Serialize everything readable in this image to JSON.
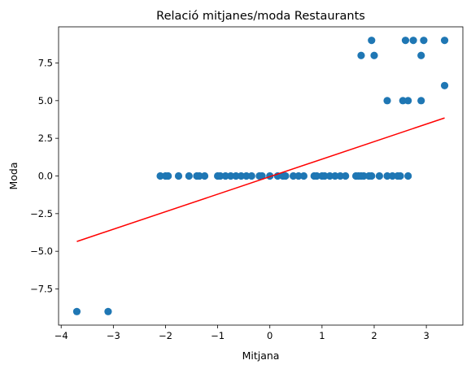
{
  "chart_data": {
    "type": "scatter",
    "title": "Relació mitjanes/moda Restaurants",
    "xlabel": "Mitjana",
    "ylabel": "Moda",
    "xlim": [
      -4.05,
      3.7
    ],
    "ylim": [
      -9.9,
      9.9
    ],
    "x_ticks": [
      -4,
      -3,
      -2,
      -1,
      0,
      1,
      2,
      3
    ],
    "x_tick_labels": [
      "−4",
      "−3",
      "−2",
      "−1",
      "0",
      "1",
      "2",
      "3"
    ],
    "y_ticks": [
      -7.5,
      -5.0,
      -2.5,
      0.0,
      2.5,
      5.0,
      7.5
    ],
    "y_tick_labels": [
      "−7.5",
      "−5.0",
      "−2.5",
      "0.0",
      "2.5",
      "5.0",
      "7.5"
    ],
    "grid": false,
    "legend": "none",
    "colors": {
      "points": "#1f77b4",
      "fit_line": "#ff0000"
    },
    "points": [
      {
        "x": -3.7,
        "y": -9
      },
      {
        "x": -3.1,
        "y": -9
      },
      {
        "x": -2.1,
        "y": 0
      },
      {
        "x": -2.0,
        "y": 0
      },
      {
        "x": -1.95,
        "y": 0
      },
      {
        "x": -1.75,
        "y": 0
      },
      {
        "x": -1.55,
        "y": 0
      },
      {
        "x": -1.4,
        "y": 0
      },
      {
        "x": -1.35,
        "y": 0
      },
      {
        "x": -1.25,
        "y": 0
      },
      {
        "x": -1.0,
        "y": 0
      },
      {
        "x": -0.95,
        "y": 0
      },
      {
        "x": -0.85,
        "y": 0
      },
      {
        "x": -0.75,
        "y": 0
      },
      {
        "x": -0.65,
        "y": 0
      },
      {
        "x": -0.55,
        "y": 0
      },
      {
        "x": -0.45,
        "y": 0
      },
      {
        "x": -0.35,
        "y": 0
      },
      {
        "x": -0.2,
        "y": 0
      },
      {
        "x": -0.15,
        "y": 0
      },
      {
        "x": 0.0,
        "y": 0
      },
      {
        "x": 0.15,
        "y": 0
      },
      {
        "x": 0.25,
        "y": 0
      },
      {
        "x": 0.3,
        "y": 0
      },
      {
        "x": 0.45,
        "y": 0
      },
      {
        "x": 0.55,
        "y": 0
      },
      {
        "x": 0.65,
        "y": 0
      },
      {
        "x": 0.85,
        "y": 0
      },
      {
        "x": 0.9,
        "y": 0
      },
      {
        "x": 1.0,
        "y": 0
      },
      {
        "x": 1.05,
        "y": 0
      },
      {
        "x": 1.15,
        "y": 0
      },
      {
        "x": 1.25,
        "y": 0
      },
      {
        "x": 1.35,
        "y": 0
      },
      {
        "x": 1.45,
        "y": 0
      },
      {
        "x": 1.65,
        "y": 0
      },
      {
        "x": 1.7,
        "y": 0
      },
      {
        "x": 1.75,
        "y": 0
      },
      {
        "x": 1.8,
        "y": 0
      },
      {
        "x": 1.9,
        "y": 0
      },
      {
        "x": 1.95,
        "y": 0
      },
      {
        "x": 2.1,
        "y": 0
      },
      {
        "x": 2.25,
        "y": 0
      },
      {
        "x": 2.35,
        "y": 0
      },
      {
        "x": 2.45,
        "y": 0
      },
      {
        "x": 2.5,
        "y": 0
      },
      {
        "x": 2.65,
        "y": 0
      },
      {
        "x": 1.75,
        "y": 8
      },
      {
        "x": 1.95,
        "y": 9
      },
      {
        "x": 2.0,
        "y": 8
      },
      {
        "x": 2.6,
        "y": 9
      },
      {
        "x": 2.75,
        "y": 9
      },
      {
        "x": 2.9,
        "y": 8
      },
      {
        "x": 2.95,
        "y": 9
      },
      {
        "x": 3.35,
        "y": 9
      },
      {
        "x": 3.35,
        "y": 6
      },
      {
        "x": 2.25,
        "y": 5
      },
      {
        "x": 2.55,
        "y": 5
      },
      {
        "x": 2.65,
        "y": 5
      },
      {
        "x": 2.9,
        "y": 5
      }
    ],
    "fit_line": {
      "x": [
        -3.7,
        3.35
      ],
      "y": [
        -4.35,
        3.85
      ]
    }
  }
}
